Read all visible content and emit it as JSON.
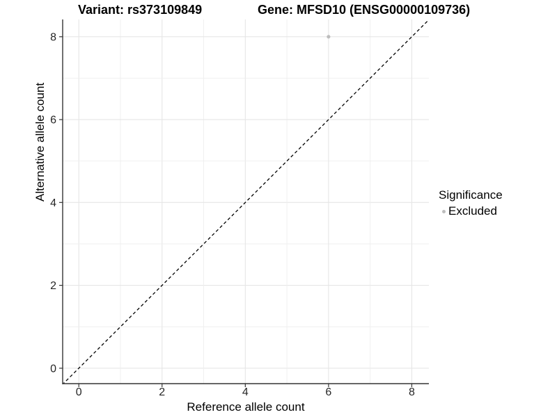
{
  "header": {
    "variant_title": "Variant: rs373109849",
    "gene_title": "Gene: MFSD10 (ENSG00000109736)"
  },
  "chart_data": {
    "type": "scatter",
    "xlabel": "Reference allele count",
    "ylabel": "Alternative allele count",
    "xlim": [
      -0.4,
      8.45
    ],
    "ylim": [
      -0.4,
      8.45
    ],
    "x_ticks": [
      0,
      2,
      4,
      6,
      8
    ],
    "y_ticks": [
      0,
      2,
      4,
      6,
      8
    ],
    "grid_positions": [
      0,
      1,
      2,
      3,
      4,
      5,
      6,
      7,
      8
    ],
    "grid": "on",
    "points": [
      {
        "x": 6,
        "y": 8,
        "significance": "Excluded"
      }
    ],
    "identity_line": {
      "style": "dashed",
      "from": [
        -0.4,
        -0.4
      ],
      "to": [
        8.45,
        8.45
      ]
    },
    "legend": {
      "position": "right",
      "title": "Significance",
      "items": [
        {
          "label": "Excluded",
          "color": "#bdbdbd"
        }
      ]
    }
  },
  "colors": {
    "point": "#bdbdbd",
    "grid_major": "#e6e6e6",
    "grid_minor": "#eeeeee",
    "axis_line": "#333333",
    "tick_text": "#262626",
    "identity_line": "#000000",
    "background": "#ffffff"
  }
}
